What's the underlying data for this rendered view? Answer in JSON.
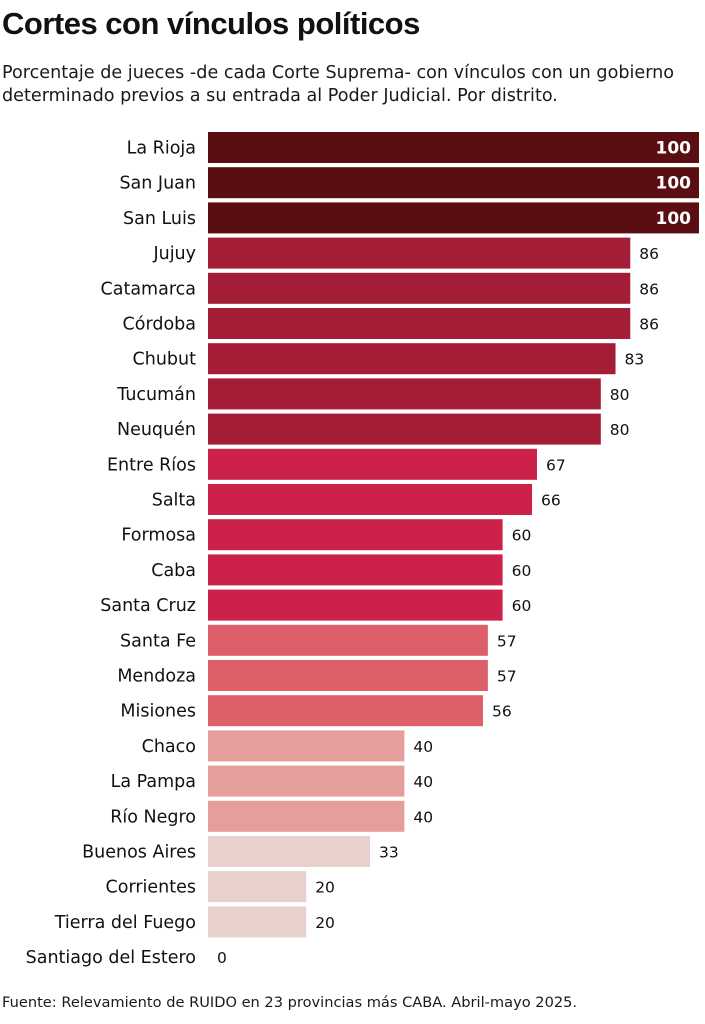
{
  "title": "Cortes con vínculos políticos",
  "subtitle": "Porcentaje de jueces -de cada Corte Suprema- con vínculos con un gobierno determinado previos a su entrada al Poder Judicial. Por distrito.",
  "source": "Fuente: Relevamiento de RUIDO en 23 provincias más CABA. Abril-mayo 2025.",
  "chart_data": {
    "type": "bar",
    "orientation": "horizontal",
    "title": "Cortes con vínculos políticos",
    "subtitle": "Porcentaje de jueces -de cada Corte Suprema- con vínculos con un gobierno determinado previos a su entrada al Poder Judicial. Por distrito.",
    "xlim": [
      0,
      100
    ],
    "grid": false,
    "legend": "none",
    "categories": [
      "La Rioja",
      "San Juan",
      "San Luis",
      "Jujuy",
      "Catamarca",
      "Córdoba",
      "Chubut",
      "Tucumán",
      "Neuquén",
      "Entre Ríos",
      "Salta",
      "Formosa",
      "Caba",
      "Santa Cruz",
      "Santa Fe",
      "Mendoza",
      "Misiones",
      "Chaco",
      "La Pampa",
      "Río Negro",
      "Buenos Aires",
      "Corrientes",
      "Tierra del Fuego",
      "Santiago del Estero"
    ],
    "values": [
      100,
      100,
      100,
      86,
      86,
      86,
      83,
      80,
      80,
      67,
      66,
      60,
      60,
      60,
      57,
      57,
      56,
      40,
      40,
      40,
      33,
      20,
      20,
      0
    ],
    "colors": [
      "#5b0e12",
      "#5b0e12",
      "#5b0e12",
      "#a31d36",
      "#a31d36",
      "#a31d36",
      "#a31d36",
      "#a31d36",
      "#a31d36",
      "#cc2148",
      "#cc2148",
      "#cc2148",
      "#cc2148",
      "#cc2148",
      "#dc5f6a",
      "#dc5f6a",
      "#dc5f6a",
      "#e59e9c",
      "#e59e9c",
      "#e59e9c",
      "#e8d1cc",
      "#e8d1cc",
      "#e8d1cc",
      "#e8d1cc"
    ]
  }
}
